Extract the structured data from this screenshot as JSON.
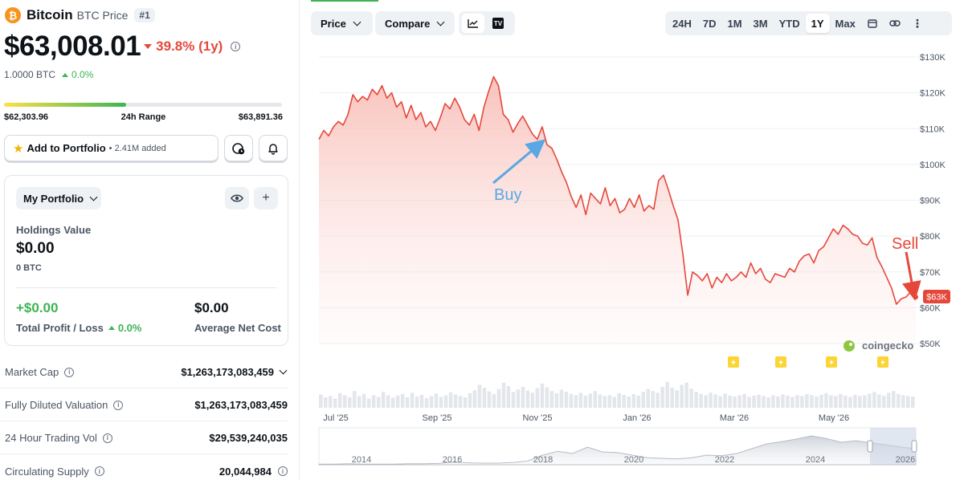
{
  "coin": {
    "logo_symbol": "₿",
    "name": "Bitcoin",
    "subtitle": "BTC Price",
    "rank": "#1",
    "price": "$63,008.01",
    "change_1y": "39.8% (1y)",
    "btc_amount": "1.0000 BTC",
    "btc_change": "0.0%"
  },
  "range24h": {
    "low": "$62,303.96",
    "label": "24h Range",
    "high": "$63,891.36",
    "position": 0.44
  },
  "portfolio_button": {
    "label": "Add to Portfolio",
    "added": "• 2.41M added"
  },
  "my_portfolio": {
    "dropdown_label": "My Portfolio",
    "holdings_label": "Holdings Value",
    "holdings_value": "$0.00",
    "holdings_btc": "0 BTC",
    "pl_value": "+$0.00",
    "pl_label": "Total Profit / Loss",
    "pl_change": "0.0%",
    "anc_value": "$0.00",
    "anc_label": "Average Net Cost"
  },
  "stats": [
    {
      "label": "Market Cap",
      "value": "$1,263,173,083,459"
    },
    {
      "label": "Fully Diluted Valuation",
      "value": "$1,263,173,083,459"
    },
    {
      "label": "24 Hour Trading Vol",
      "value": "$29,539,240,035"
    },
    {
      "label": "Circulating Supply",
      "value": "20,044,984"
    }
  ],
  "toolbar": {
    "price_tab": "Price",
    "compare_tab": "Compare",
    "tv_icon_text": "TV",
    "ranges": [
      "24H",
      "7D",
      "1M",
      "3M",
      "YTD",
      "1Y",
      "Max"
    ],
    "active_range": "1Y"
  },
  "colors": {
    "line": "#e5483b",
    "area_top": "#fbd5d1",
    "buy_arrow": "#5aa7e3",
    "sell_arrow": "#e5483b",
    "positive": "#3db454",
    "negative": "#e5483b",
    "brand_green": "#3db454",
    "watermark_green": "#8dc63f"
  },
  "chart_data": {
    "type": "area",
    "y_tick_labels": [
      "$130K",
      "$120K",
      "$110K",
      "$100K",
      "$90K",
      "$80K",
      "$70K",
      "$60K",
      "$50K"
    ],
    "ylim": [
      50000,
      130000
    ],
    "x_tick_labels": [
      "Jul '25",
      "Sep '25",
      "Nov '25",
      "Jan '26",
      "Mar '26",
      "May '26"
    ],
    "last_price_label": "$63K",
    "watermark": "coingecko",
    "annotations": [
      {
        "text": "Buy",
        "color": "#5aa7e3"
      },
      {
        "text": "Sell",
        "color": "#e5483b"
      }
    ],
    "series": [
      {
        "values": [
          107000,
          109500,
          108000,
          110500,
          112000,
          111000,
          114000,
          119500,
          117500,
          119000,
          118000,
          121000,
          119500,
          122000,
          118500,
          120000,
          116000,
          117500,
          113000,
          116500,
          112500,
          114500,
          110500,
          112000,
          109500,
          113000,
          117000,
          115500,
          118500,
          116000,
          112500,
          111000,
          114000,
          109500,
          116000,
          120500,
          124500,
          122000,
          114000,
          112500,
          109000,
          111500,
          113500,
          111000,
          108500,
          107000,
          110500,
          105500,
          104500,
          101500,
          98000,
          95000,
          91000,
          88000,
          91500,
          86000,
          92000,
          90500,
          89000,
          93500,
          88500,
          90500,
          86500,
          87500,
          90500,
          88000,
          91500,
          87000,
          88500,
          87500,
          95500,
          97000,
          93000,
          88500,
          84500,
          75000,
          63500,
          70000,
          69000,
          67500,
          69500,
          65500,
          68500,
          67000,
          69500,
          67500,
          68500,
          70000,
          68500,
          72500,
          69500,
          71000,
          68000,
          67000,
          69500,
          69000,
          68500,
          71000,
          70000,
          73000,
          74500,
          75000,
          72500,
          76000,
          77000,
          79500,
          82000,
          80500,
          83000,
          82000,
          80500,
          80000,
          78000,
          77500,
          79500,
          74000,
          71500,
          68500,
          65500,
          61000,
          62500,
          63000,
          64500,
          63000
        ]
      }
    ],
    "volume": [
      0.32,
      0.25,
      0.28,
      0.22,
      0.35,
      0.3,
      0.25,
      0.4,
      0.28,
      0.33,
      0.22,
      0.3,
      0.26,
      0.38,
      0.3,
      0.24,
      0.29,
      0.33,
      0.25,
      0.36,
      0.27,
      0.31,
      0.23,
      0.28,
      0.34,
      0.26,
      0.3,
      0.37,
      0.32,
      0.28,
      0.25,
      0.35,
      0.42,
      0.55,
      0.48,
      0.39,
      0.33,
      0.45,
      0.6,
      0.52,
      0.38,
      0.44,
      0.5,
      0.41,
      0.36,
      0.47,
      0.58,
      0.49,
      0.4,
      0.35,
      0.43,
      0.38,
      0.33,
      0.3,
      0.36,
      0.29,
      0.34,
      0.4,
      0.32,
      0.28,
      0.3,
      0.26,
      0.35,
      0.31,
      0.27,
      0.33,
      0.29,
      0.38,
      0.45,
      0.4,
      0.36,
      0.5,
      0.62,
      0.48,
      0.42,
      0.55,
      0.6,
      0.46,
      0.38,
      0.33,
      0.3,
      0.36,
      0.32,
      0.28,
      0.34,
      0.29,
      0.27,
      0.3,
      0.33,
      0.26,
      0.29,
      0.31,
      0.28,
      0.25,
      0.3,
      0.27,
      0.32,
      0.29,
      0.26,
      0.3,
      0.28,
      0.33,
      0.3,
      0.27,
      0.31,
      0.35,
      0.3,
      0.28,
      0.33,
      0.29,
      0.26,
      0.31,
      0.28,
      0.3,
      0.34,
      0.38,
      0.32,
      0.29,
      0.36,
      0.4,
      0.33,
      0.3,
      0.28,
      0.27
    ]
  },
  "navigator": {
    "year_labels": [
      "2014",
      "2016",
      "2018",
      "2020",
      "2022",
      "2024",
      "2026"
    ],
    "series": [
      0.02,
      0.02,
      0.03,
      0.02,
      0.02,
      0.02,
      0.03,
      0.03,
      0.04,
      0.08,
      0.06,
      0.05,
      0.05,
      0.07,
      0.12,
      0.3,
      0.42,
      0.35,
      0.55,
      0.4,
      0.38,
      0.3,
      0.22,
      0.2,
      0.18,
      0.22,
      0.3,
      0.28,
      0.35,
      0.5,
      0.65,
      0.72,
      0.8,
      0.9,
      0.82,
      0.7,
      0.75,
      0.68,
      0.62,
      0.55,
      0.5
    ]
  }
}
